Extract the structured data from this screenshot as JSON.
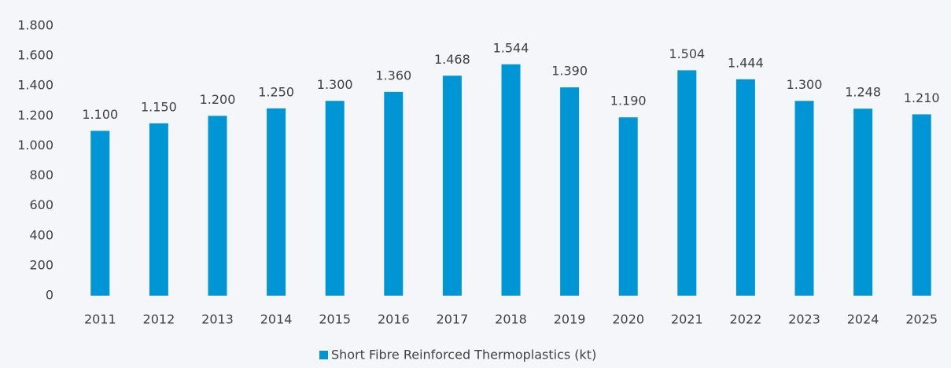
{
  "chart_data": {
    "type": "bar",
    "categories": [
      "2011",
      "2012",
      "2013",
      "2014",
      "2015",
      "2016",
      "2017",
      "2018",
      "2019",
      "2020",
      "2021",
      "2022",
      "2023",
      "2024",
      "2025"
    ],
    "series": [
      {
        "name": "Short Fibre Reinforced Thermoplastics (kt)",
        "color": "#0096d6",
        "values": [
          1100,
          1150,
          1200,
          1250,
          1300,
          1360,
          1468,
          1544,
          1390,
          1190,
          1504,
          1444,
          1300,
          1248,
          1210
        ],
        "value_labels": [
          "1.100",
          "1.150",
          "1.200",
          "1.250",
          "1.300",
          "1.360",
          "1.468",
          "1.544",
          "1.390",
          "1.190",
          "1.504",
          "1.444",
          "1.300",
          "1.248",
          "1.210"
        ]
      }
    ],
    "ylim": [
      0,
      1800
    ],
    "yticks": [
      0,
      200,
      400,
      600,
      800,
      {
        "value": 1000,
        "label": "1.000"
      },
      {
        "value": 1200,
        "label": "1.200"
      },
      {
        "value": 1400,
        "label": "1.400"
      },
      {
        "value": 1600,
        "label": "1.600"
      },
      {
        "value": 1800,
        "label": "1.800"
      }
    ],
    "legend": "bottom"
  }
}
